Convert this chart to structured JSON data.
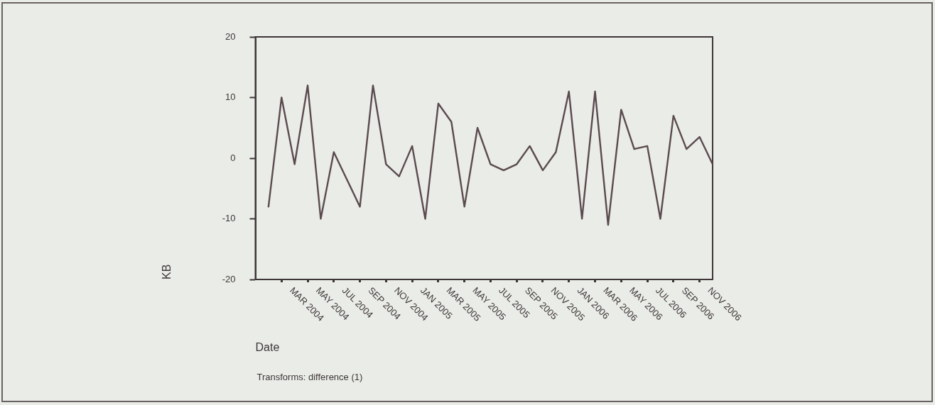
{
  "chart_data": {
    "type": "line",
    "xlabel": "Date",
    "ylabel": "KB",
    "annotations": [
      "Transforms: difference (1)"
    ],
    "x": [
      "2004-02",
      "2004-03",
      "2004-04",
      "2004-05",
      "2004-06",
      "2004-07",
      "2004-08",
      "2004-09",
      "2004-10",
      "2004-11",
      "2004-12",
      "2005-01",
      "2005-02",
      "2005-03",
      "2005-04",
      "2005-05",
      "2005-06",
      "2005-07",
      "2005-08",
      "2005-09",
      "2005-10",
      "2005-11",
      "2005-12",
      "2006-01",
      "2006-02",
      "2006-03",
      "2006-04",
      "2006-05",
      "2006-06",
      "2006-07",
      "2006-08",
      "2006-09",
      "2006-10",
      "2006-11",
      "2006-12"
    ],
    "series": [
      {
        "color": "#5b4a4f",
        "values": [
          -8,
          10,
          -1,
          12,
          -10,
          1,
          -3.5,
          -8,
          12,
          -1,
          -3,
          2,
          -10,
          9,
          6,
          -8,
          5,
          -1,
          -2,
          -1,
          2,
          -2,
          1,
          11,
          -10,
          11,
          -11,
          8,
          1.5,
          2,
          -10,
          7,
          1.5,
          3.5,
          -1
        ]
      }
    ],
    "xlim": [
      "2004-01",
      "2006-12"
    ],
    "xticks": [
      {
        "value": "2004-03",
        "label": "MAR 2004"
      },
      {
        "value": "2004-05",
        "label": "MAY 2004"
      },
      {
        "value": "2004-07",
        "label": "JUL 2004"
      },
      {
        "value": "2004-09",
        "label": "SEP 2004"
      },
      {
        "value": "2004-11",
        "label": "NOV 2004"
      },
      {
        "value": "2005-01",
        "label": "JAN 2005"
      },
      {
        "value": "2005-03",
        "label": "MAR 2005"
      },
      {
        "value": "2005-05",
        "label": "MAY 2005"
      },
      {
        "value": "2005-07",
        "label": "JUL 2005"
      },
      {
        "value": "2005-09",
        "label": "SEP 2005"
      },
      {
        "value": "2005-11",
        "label": "NOV 2005"
      },
      {
        "value": "2006-01",
        "label": "JAN 2006"
      },
      {
        "value": "2006-03",
        "label": "MAR 2006"
      },
      {
        "value": "2006-05",
        "label": "MAY 2006"
      },
      {
        "value": "2006-07",
        "label": "JUL 2006"
      },
      {
        "value": "2006-09",
        "label": "SEP 2006"
      },
      {
        "value": "2006-11",
        "label": "NOV 2006"
      }
    ],
    "ylim": [
      -20,
      20
    ],
    "yticks": [
      -20,
      -10,
      0,
      10,
      20
    ],
    "grid": false,
    "legend": false,
    "marker": "none",
    "line_style": "solid"
  }
}
